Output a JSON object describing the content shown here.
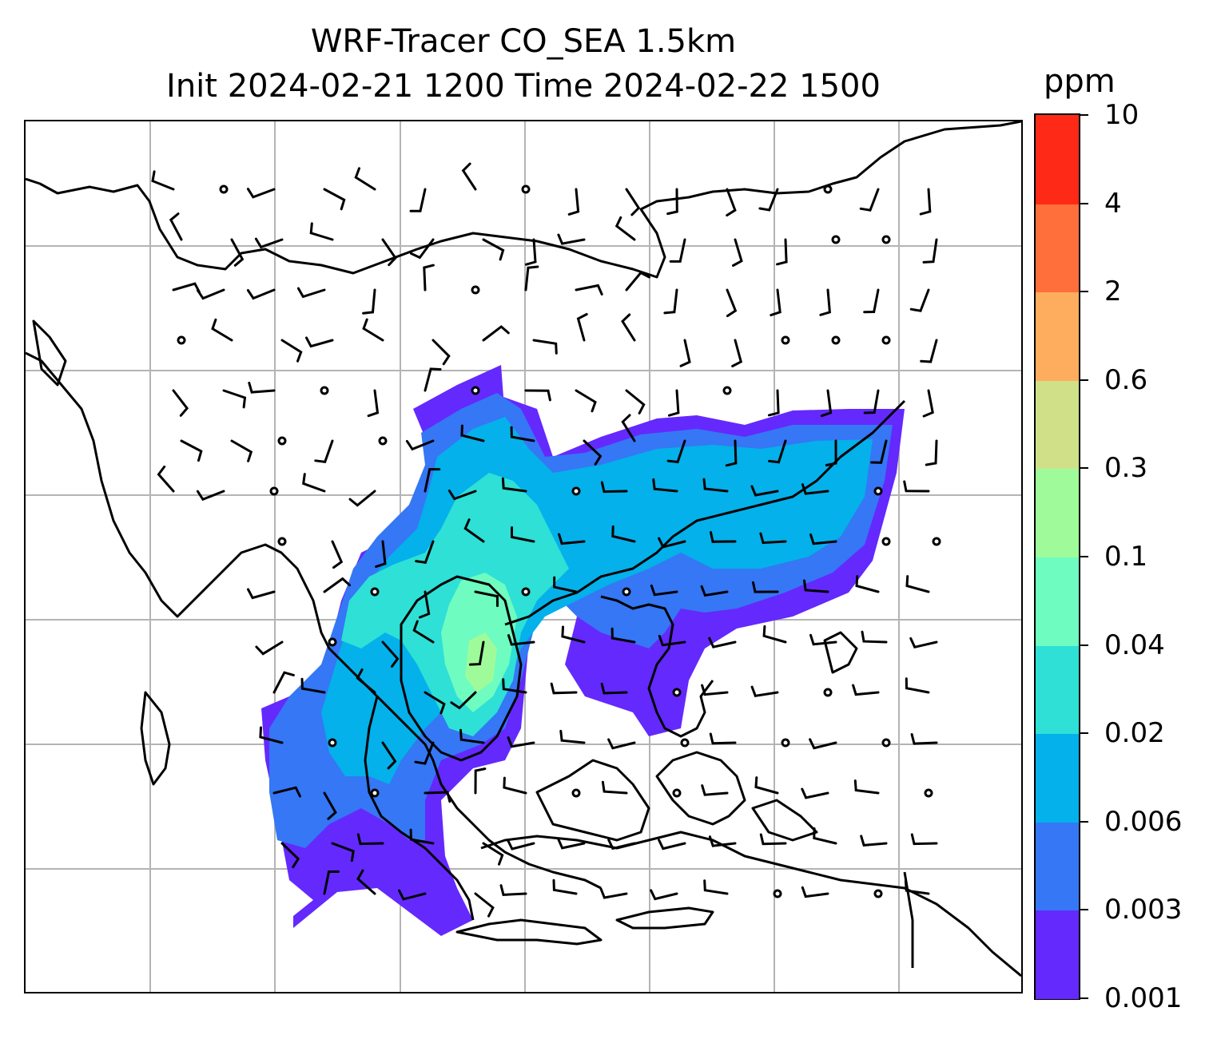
{
  "title": {
    "line1": "WRF-Tracer CO_SEA 1.5km",
    "line2": "Init 2024-02-21 1200 Time 2024-02-22 1500"
  },
  "colorbar": {
    "unit": "ppm",
    "levels": [
      "0.001",
      "0.003",
      "0.006",
      "0.02",
      "0.04",
      "0.1",
      "0.3",
      "0.6",
      "2",
      "4",
      "10"
    ],
    "colors": [
      "#6429fd",
      "#3577f5",
      "#04b1ea",
      "#2ee0d6",
      "#6efcc0",
      "#9ffb9a",
      "#cfe089",
      "#fead5f",
      "#fe6f3b",
      "#fe2a17"
    ]
  },
  "map": {
    "type": "filled contour of CO tracer concentration with wind barbs",
    "gridlines": true,
    "coastline_color": "#000000",
    "grid_color": "#b4b4b4"
  }
}
